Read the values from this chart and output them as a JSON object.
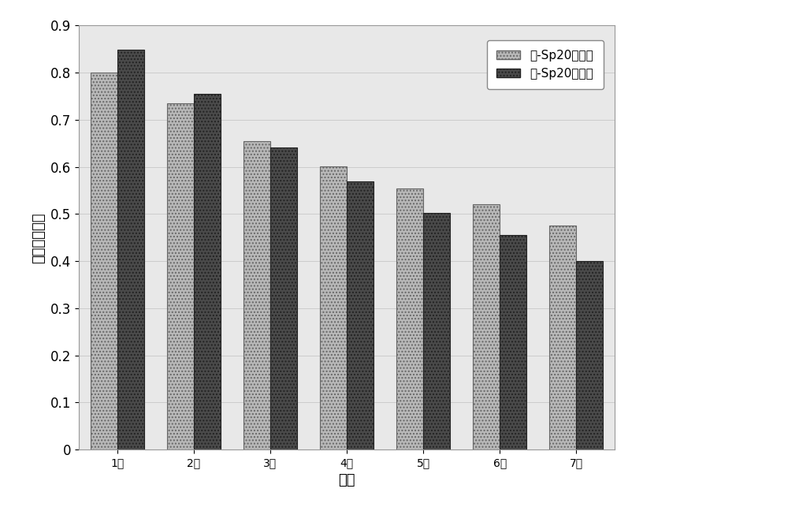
{
  "categories": [
    "1年",
    "2年",
    "3年",
    "4年",
    "5年",
    "6年",
    "7年"
  ],
  "series1_label": "抗-Sp20阳性组",
  "series2_label": "抗-Sp20阴性组",
  "series1_values": [
    0.8,
    0.735,
    0.655,
    0.601,
    0.555,
    0.52,
    0.475
  ],
  "series2_values": [
    0.848,
    0.755,
    0.642,
    0.57,
    0.502,
    0.455,
    0.4
  ],
  "series1_color": "#b8b8b8",
  "series2_color": "#4a4a4a",
  "xlabel": "时间",
  "ylabel": "平均生存概率",
  "ylim": [
    0,
    0.9
  ],
  "yticks": [
    0,
    0.1,
    0.2,
    0.3,
    0.4,
    0.5,
    0.6,
    0.7,
    0.8,
    0.9
  ],
  "ytick_labels": [
    "0",
    "0.1",
    "0.2",
    "0.3",
    "0.4",
    "0.5",
    "0.6",
    "0.7",
    "0.8",
    "0.9"
  ],
  "background_color": "#ffffff",
  "plot_bg_color": "#e8e8e8",
  "bar_width": 0.35,
  "legend_fontsize": 11,
  "axis_fontsize": 13,
  "tick_fontsize": 12
}
